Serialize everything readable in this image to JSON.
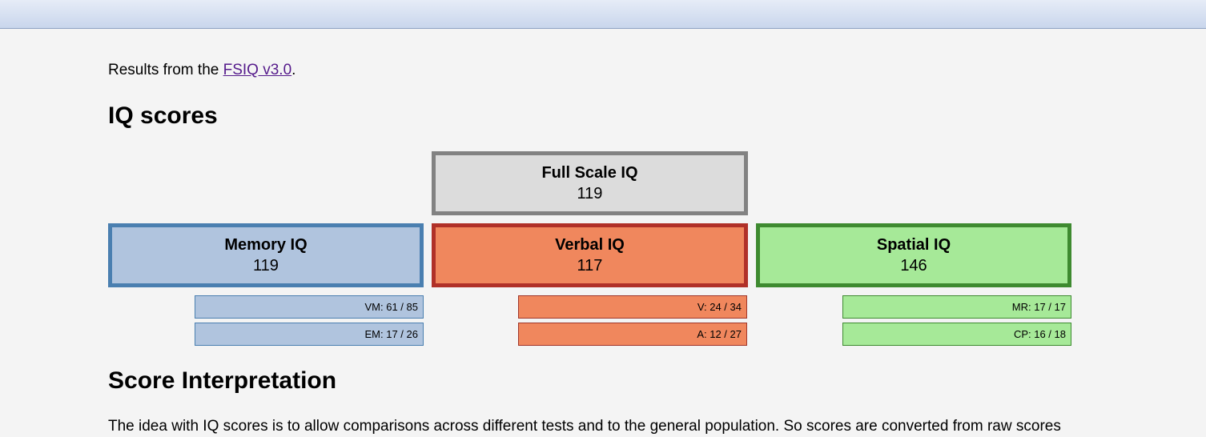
{
  "intro": {
    "prefix": "Results from the ",
    "link_text": "FSIQ v3.0",
    "suffix": "."
  },
  "headings": {
    "iq_scores": "IQ scores",
    "score_interpretation": "Score Interpretation"
  },
  "scores": {
    "full_scale": {
      "title": "Full Scale IQ",
      "value": "119"
    },
    "memory": {
      "title": "Memory IQ",
      "value": "119"
    },
    "verbal": {
      "title": "Verbal IQ",
      "value": "117"
    },
    "spatial": {
      "title": "Spatial IQ",
      "value": "146"
    }
  },
  "subscores": {
    "memory": [
      "VM: 61 / 85",
      "EM: 17 / 26"
    ],
    "verbal": [
      "V: 24 / 34",
      "A: 12 / 27"
    ],
    "spatial": [
      "MR: 17 / 17",
      "CP: 16 / 18"
    ]
  },
  "paragraph": "The idea with IQ scores is to allow comparisons across different tests and to the general population. So scores are converted from raw scores",
  "colors": {
    "full_scale_fill": "#dcdcdc",
    "memory_fill": "#b0c4de",
    "verbal_fill": "#f0875d",
    "spatial_fill": "#a6e998",
    "link": "#551a8b"
  }
}
